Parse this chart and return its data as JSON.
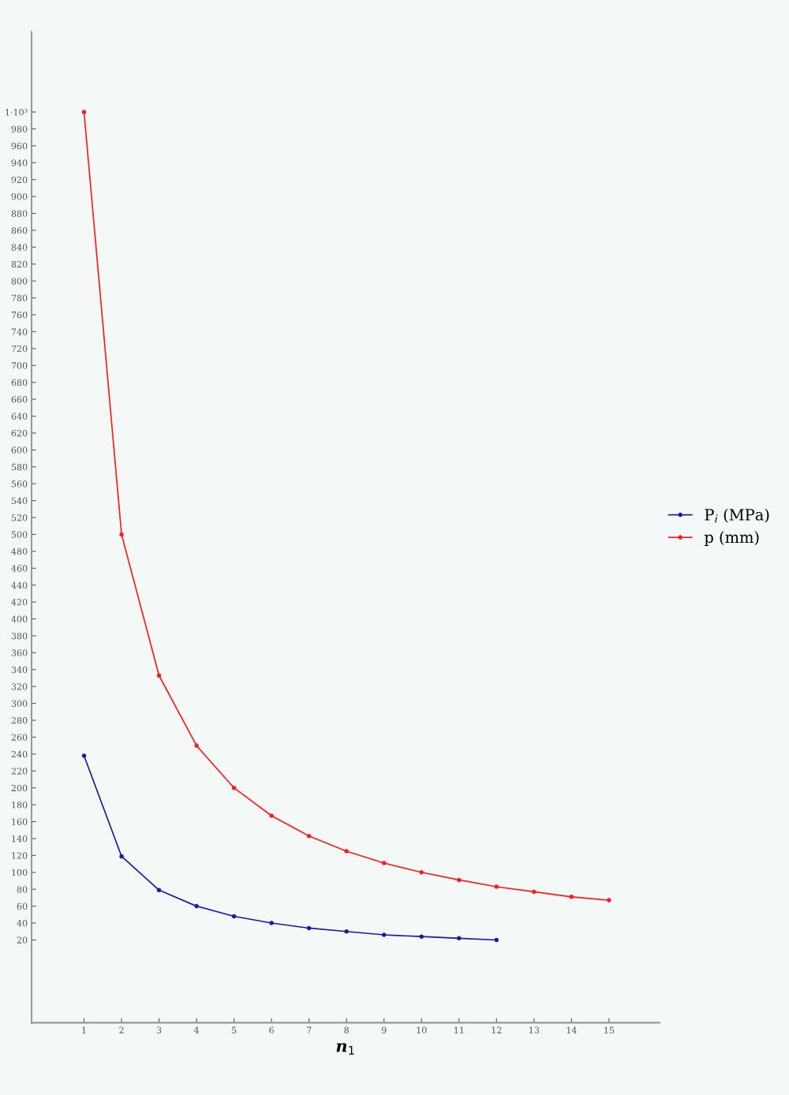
{
  "chart_data": {
    "type": "line",
    "xlabel": "n$_{1}$",
    "x": [
      1,
      2,
      3,
      4,
      5,
      6,
      7,
      8,
      9,
      10,
      11,
      12,
      13,
      14,
      15
    ],
    "series": [
      {
        "name": "P$_{i}$ (MPa)",
        "color": "#1a1aa6",
        "x": [
          1,
          2,
          3,
          4,
          5,
          6,
          7,
          8,
          9,
          10,
          11,
          12
        ],
        "values": [
          238,
          119,
          79,
          60,
          48,
          40,
          34,
          30,
          26,
          24,
          22,
          20
        ]
      },
      {
        "name": "p (mm)",
        "color": "#ff1a1a",
        "values": [
          1000,
          500,
          333,
          250,
          200,
          167,
          143,
          125,
          111,
          100,
          91,
          83,
          77,
          71,
          67
        ]
      }
    ],
    "xlim": [
      -0.4,
      16.35
    ],
    "ylim": [
      -78,
      1095
    ],
    "xticks": [
      1,
      2,
      3,
      4,
      5,
      6,
      7,
      8,
      9,
      10,
      11,
      12,
      13,
      14,
      15
    ],
    "yticks": [
      20,
      40,
      60,
      80,
      100,
      120,
      140,
      160,
      180,
      200,
      220,
      240,
      260,
      280,
      300,
      320,
      340,
      360,
      380,
      400,
      420,
      440,
      460,
      480,
      500,
      520,
      540,
      560,
      580,
      600,
      620,
      640,
      660,
      680,
      700,
      720,
      740,
      760,
      780,
      800,
      820,
      840,
      860,
      880,
      900,
      920,
      940,
      960,
      980,
      {
        "value": 1000,
        "label": "1·10³"
      }
    ],
    "marker": "circle",
    "line_style": "solid",
    "legend": "right"
  }
}
